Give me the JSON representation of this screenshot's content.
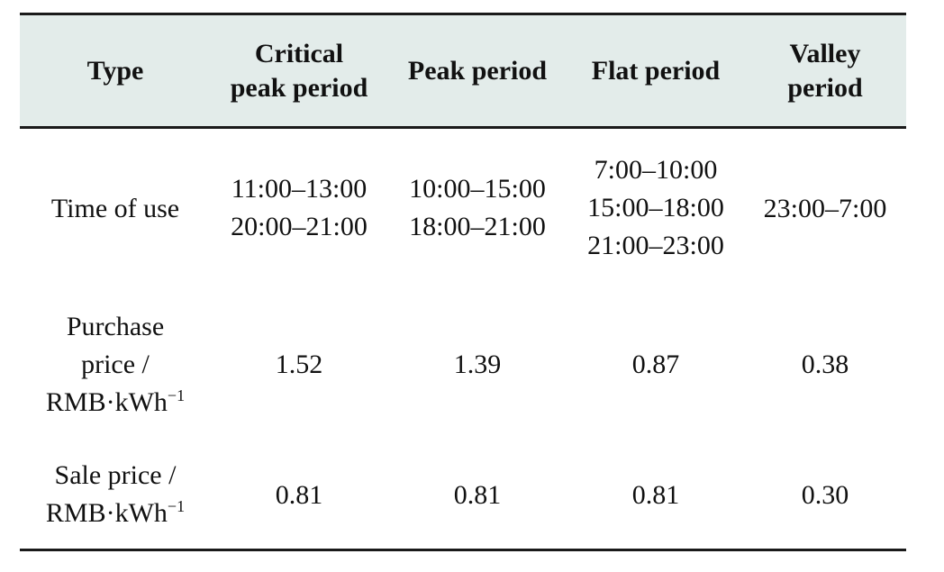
{
  "header": {
    "type": "Type",
    "critical": [
      "Critical",
      "peak period"
    ],
    "peak": "Peak period",
    "flat": "Flat period",
    "valley": [
      "Valley",
      "period"
    ]
  },
  "rows": {
    "time": {
      "label": "Time of use",
      "critical": [
        "11:00–13:00",
        "20:00–21:00"
      ],
      "peak": [
        "10:00–15:00",
        "18:00–21:00"
      ],
      "flat": [
        "7:00–10:00",
        "15:00–18:00",
        "21:00–23:00"
      ],
      "valley": "23:00–7:00"
    },
    "purchase": {
      "label": [
        "Purchase",
        "price /",
        "RMB·kWh",
        "−1"
      ],
      "critical": "1.52",
      "peak": "1.39",
      "flat": "0.87",
      "valley": "0.38"
    },
    "sale": {
      "label": [
        "Sale price /",
        "RMB·kWh",
        "−1"
      ],
      "critical": "0.81",
      "peak": "0.81",
      "flat": "0.81",
      "valley": "0.30"
    }
  }
}
